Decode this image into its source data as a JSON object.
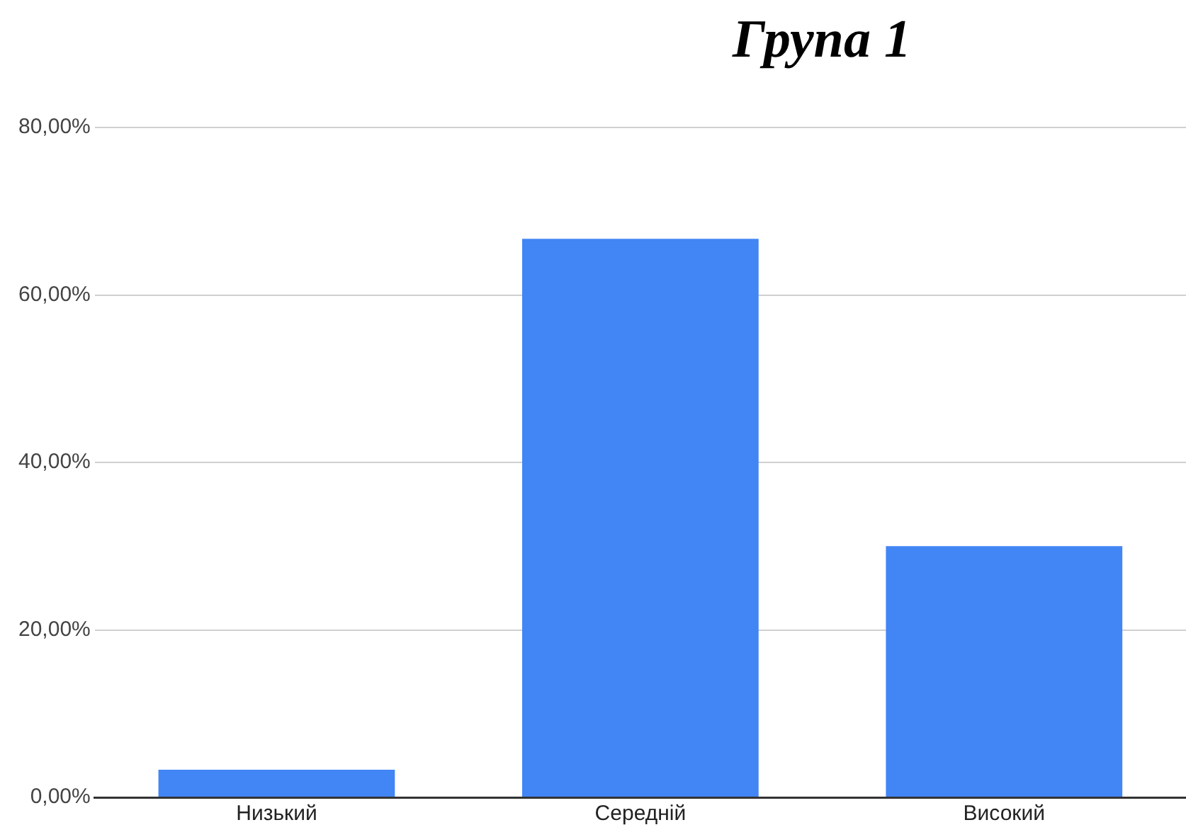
{
  "chart_data": {
    "type": "bar",
    "title": "Група 1",
    "categories": [
      "Низький",
      "Середній",
      "Високий"
    ],
    "values": [
      3.3,
      66.7,
      30
    ],
    "color": "#4285f4",
    "ylim": [
      0,
      80
    ],
    "yticks": [
      {
        "value": 0,
        "label": "0,00%"
      },
      {
        "value": 20,
        "label": "20,00%"
      },
      {
        "value": 40,
        "label": "40,00%"
      },
      {
        "value": 60,
        "label": "60,00%"
      },
      {
        "value": 80,
        "label": "80,00%"
      }
    ],
    "grid": "y"
  }
}
